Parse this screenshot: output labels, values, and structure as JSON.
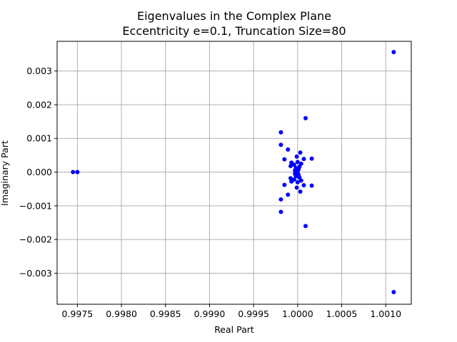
{
  "chart_data": {
    "type": "scatter",
    "title": "Eigenvalues in the Complex Plane",
    "subtitle": "Eccentricity e=0.1, Truncation Size=80",
    "xlabel": "Real Part",
    "ylabel": "Imaginary Part",
    "xlim": [
      0.99727,
      1.00129
    ],
    "ylim": [
      -0.00392,
      0.00388
    ],
    "xticks": [
      0.9975,
      0.998,
      0.9985,
      0.999,
      0.9995,
      1.0,
      1.0005,
      1.001
    ],
    "xtick_labels": [
      "0.9975",
      "0.9980",
      "0.9985",
      "0.9990",
      "0.9995",
      "1.0000",
      "1.0005",
      "1.0010"
    ],
    "yticks": [
      -0.003,
      -0.002,
      -0.001,
      0.0,
      0.001,
      0.002,
      0.003
    ],
    "ytick_labels": [
      "−0.003",
      "−0.002",
      "−0.001",
      "0.000",
      "0.001",
      "0.002",
      "0.003"
    ],
    "grid": true,
    "marker_color": "#0000ff",
    "points": [
      {
        "x": 0.99745,
        "y": 0.0
      },
      {
        "x": 0.9975,
        "y": 0.0
      },
      {
        "x": 1.00109,
        "y": 0.00356
      },
      {
        "x": 1.00109,
        "y": -0.00356
      },
      {
        "x": 1.00009,
        "y": 0.0016
      },
      {
        "x": 1.00009,
        "y": -0.0016
      },
      {
        "x": 0.99981,
        "y": 0.00118
      },
      {
        "x": 0.99981,
        "y": -0.00118
      },
      {
        "x": 0.99981,
        "y": 0.00081
      },
      {
        "x": 0.99981,
        "y": -0.00081
      },
      {
        "x": 0.99989,
        "y": 0.00067
      },
      {
        "x": 0.99989,
        "y": -0.00067
      },
      {
        "x": 1.00003,
        "y": 0.00058
      },
      {
        "x": 1.00003,
        "y": -0.00058
      },
      {
        "x": 0.99999,
        "y": 0.00046
      },
      {
        "x": 0.99999,
        "y": -0.00046
      },
      {
        "x": 1.00016,
        "y": 0.0004
      },
      {
        "x": 1.00016,
        "y": -0.0004
      },
      {
        "x": 0.99985,
        "y": 0.00038
      },
      {
        "x": 0.99985,
        "y": -0.00038
      },
      {
        "x": 1.00007,
        "y": 0.00039
      },
      {
        "x": 1.00007,
        "y": -0.00039
      },
      {
        "x": 0.99993,
        "y": 0.00028
      },
      {
        "x": 0.99993,
        "y": -0.00028
      },
      {
        "x": 1.00004,
        "y": 0.00025
      },
      {
        "x": 1.00004,
        "y": -0.00025
      },
      {
        "x": 1.0,
        "y": 0.0003
      },
      {
        "x": 1.0,
        "y": -0.0003
      },
      {
        "x": 0.99992,
        "y": 0.00018
      },
      {
        "x": 0.99992,
        "y": -0.00018
      },
      {
        "x": 1.00002,
        "y": 0.00016
      },
      {
        "x": 1.00002,
        "y": -0.00016
      },
      {
        "x": 0.99998,
        "y": 0.00012
      },
      {
        "x": 0.99998,
        "y": -0.00012
      },
      {
        "x": 1.00001,
        "y": 8e-05
      },
      {
        "x": 1.00001,
        "y": -8e-05
      },
      {
        "x": 0.99997,
        "y": 5e-05
      },
      {
        "x": 0.99997,
        "y": -5e-05
      },
      {
        "x": 1.0,
        "y": 3e-05
      },
      {
        "x": 1.0,
        "y": -3e-05
      },
      {
        "x": 0.99996,
        "y": 0.00022
      },
      {
        "x": 0.99996,
        "y": -0.00022
      }
    ]
  }
}
